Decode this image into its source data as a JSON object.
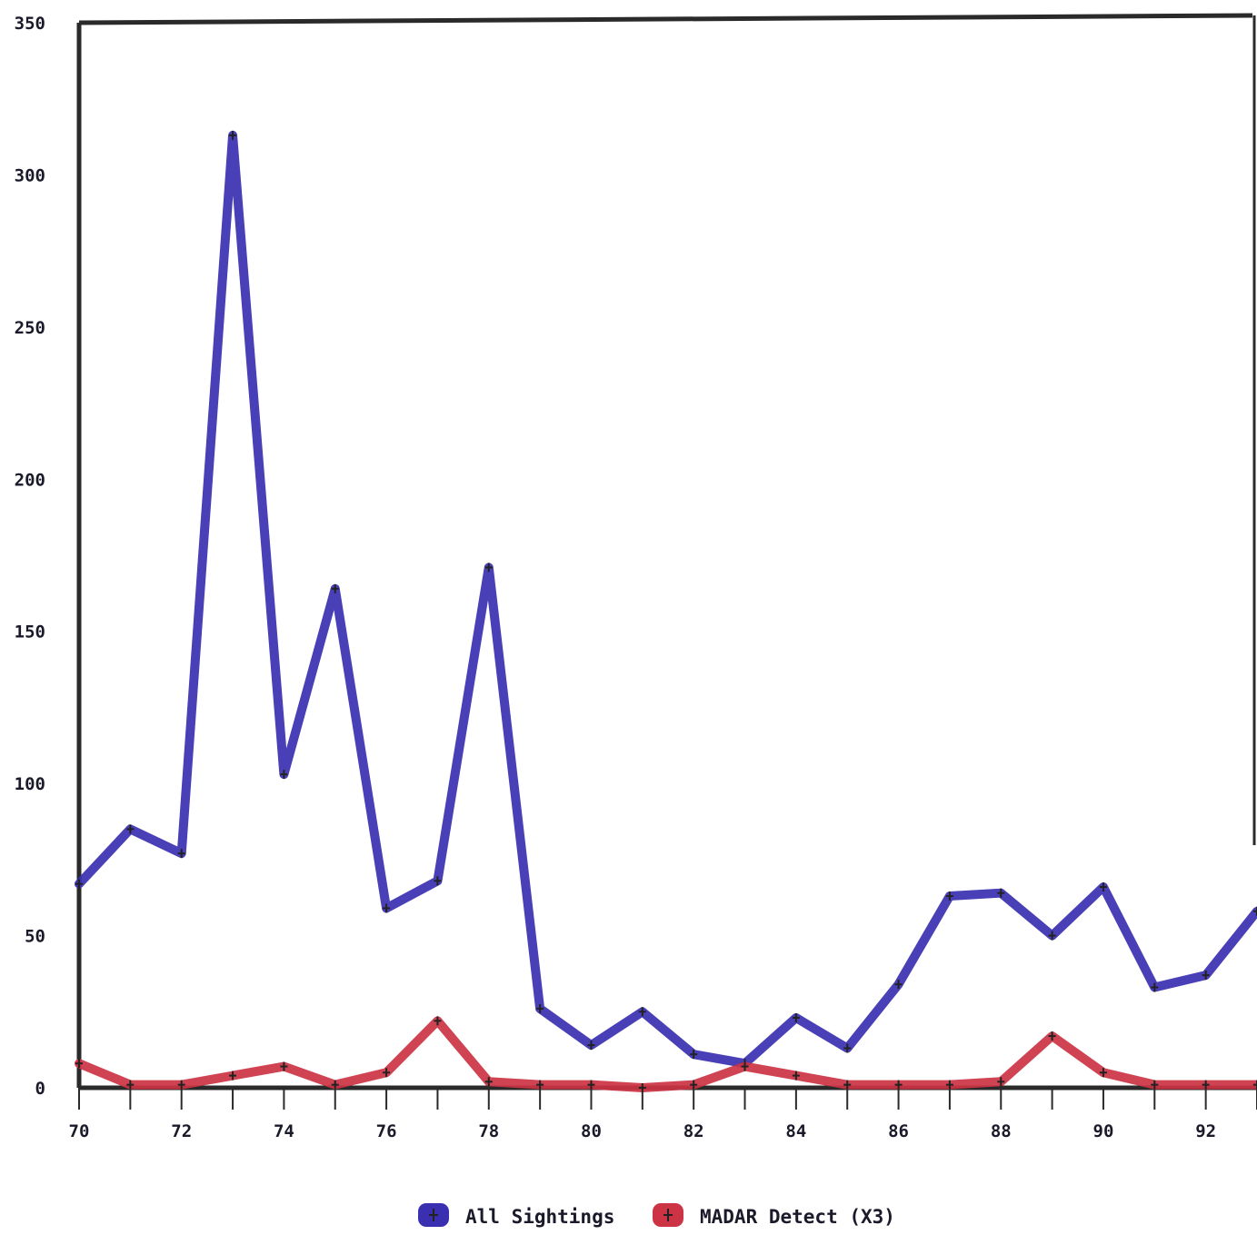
{
  "chart_data": {
    "type": "line",
    "title": "",
    "xlabel": "",
    "ylabel": "",
    "x": [
      70,
      71,
      72,
      73,
      74,
      75,
      76,
      77,
      78,
      79,
      80,
      81,
      82,
      83,
      84,
      85,
      86,
      87,
      88,
      89,
      90,
      91,
      92,
      93
    ],
    "x_tick_labels": [
      "70",
      "72",
      "74",
      "76",
      "78",
      "80",
      "82",
      "84",
      "86",
      "88",
      "90",
      "92"
    ],
    "y_tick_labels": [
      "0",
      "50",
      "100",
      "150",
      "200",
      "250",
      "300",
      "350"
    ],
    "xlim": [
      70,
      93
    ],
    "ylim": [
      0,
      350
    ],
    "grid": false,
    "legend_position": "bottom-center",
    "series": [
      {
        "name": "All Sightings",
        "color": "#3a2fb0",
        "values": [
          67,
          85,
          77,
          313,
          103,
          164,
          59,
          68,
          171,
          26,
          14,
          25,
          11,
          8,
          23,
          13,
          34,
          63,
          64,
          50,
          66,
          33,
          37,
          58
        ]
      },
      {
        "name": "MADAR Detect (X3)",
        "color": "#cc3344",
        "values": [
          8,
          1,
          1,
          4,
          7,
          1,
          5,
          22,
          2,
          1,
          1,
          0,
          1,
          7,
          4,
          1,
          1,
          1,
          2,
          17,
          5,
          1,
          1,
          1
        ]
      }
    ]
  }
}
